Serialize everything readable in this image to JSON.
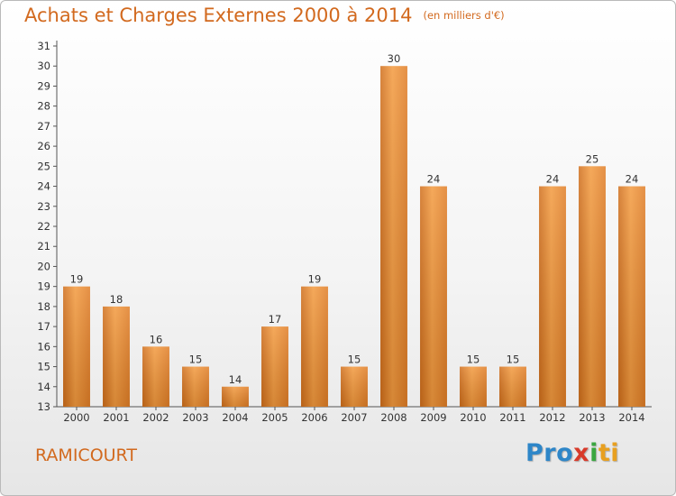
{
  "chart_data": {
    "type": "bar",
    "title": "Achats et Charges Externes 2000 à 2014",
    "subtitle": "(en milliers d'€)",
    "xlabel": "",
    "ylabel": "",
    "categories": [
      "2000",
      "2001",
      "2002",
      "2003",
      "2004",
      "2005",
      "2006",
      "2007",
      "2008",
      "2009",
      "2010",
      "2011",
      "2012",
      "2013",
      "2014"
    ],
    "values": [
      19,
      18,
      16,
      15,
      14,
      17,
      19,
      15,
      30,
      24,
      15,
      15,
      24,
      25,
      24
    ],
    "ylim": [
      13,
      31
    ],
    "yticks": [
      13,
      14,
      15,
      16,
      17,
      18,
      19,
      20,
      21,
      22,
      23,
      24,
      25,
      26,
      27,
      28,
      29,
      30,
      31
    ],
    "grid": false,
    "bar_color": "#f39a3e",
    "bar_color_dark": "#cf6d1a"
  },
  "footer": {
    "place": "RAMICOURT",
    "logo_parts": [
      "Pro",
      "x",
      "i",
      "ti"
    ]
  },
  "colors": {
    "title": "#d2691e",
    "axis": "#555555"
  }
}
